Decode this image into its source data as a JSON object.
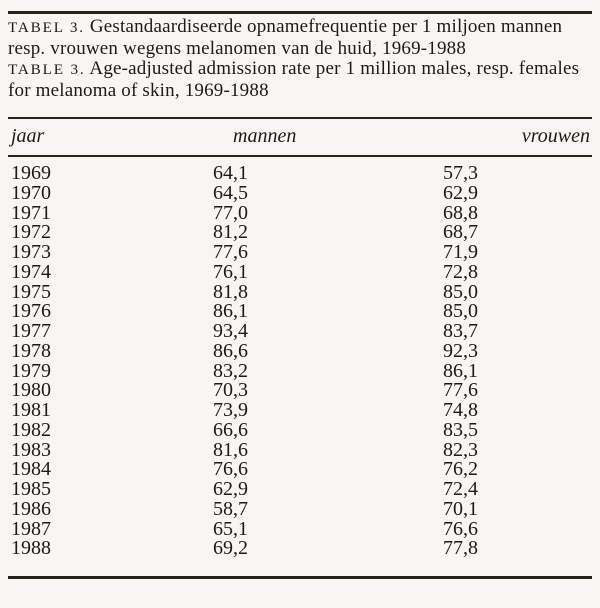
{
  "page": {
    "background": "#f7f6f2",
    "ink": "#1d1b18"
  },
  "caption": {
    "dutch": {
      "label": "TABEL 3.",
      "text": "Gestandaardiseerde opnamefrequentie per 1 miljoen mannen resp. vrouwen wegens melanomen van de huid, 1969-1988"
    },
    "english": {
      "label": "TABLE 3.",
      "text": "Age-adjusted admission rate per 1 million males, resp. females for melanoma of skin, 1969-1988"
    }
  },
  "table": {
    "columns": [
      "jaar",
      "mannen",
      "vrouwen"
    ],
    "rows": [
      [
        "1969",
        "64,1",
        "57,3"
      ],
      [
        "1970",
        "64,5",
        "62,9"
      ],
      [
        "1971",
        "77,0",
        "68,8"
      ],
      [
        "1972",
        "81,2",
        "68,7"
      ],
      [
        "1973",
        "77,6",
        "71,9"
      ],
      [
        "1974",
        "76,1",
        "72,8"
      ],
      [
        "1975",
        "81,8",
        "85,0"
      ],
      [
        "1976",
        "86,1",
        "85,0"
      ],
      [
        "1977",
        "93,4",
        "83,7"
      ],
      [
        "1978",
        "86,6",
        "92,3"
      ],
      [
        "1979",
        "83,2",
        "86,1"
      ],
      [
        "1980",
        "70,3",
        "77,6"
      ],
      [
        "1981",
        "73,9",
        "74,8"
      ],
      [
        "1982",
        "66,6",
        "83,5"
      ],
      [
        "1983",
        "81,6",
        "82,3"
      ],
      [
        "1984",
        "76,6",
        "76,2"
      ],
      [
        "1985",
        "62,9",
        "72,4"
      ],
      [
        "1986",
        "58,7",
        "70,1"
      ],
      [
        "1987",
        "65,1",
        "76,6"
      ],
      [
        "1988",
        "69,2",
        "77,8"
      ]
    ]
  }
}
